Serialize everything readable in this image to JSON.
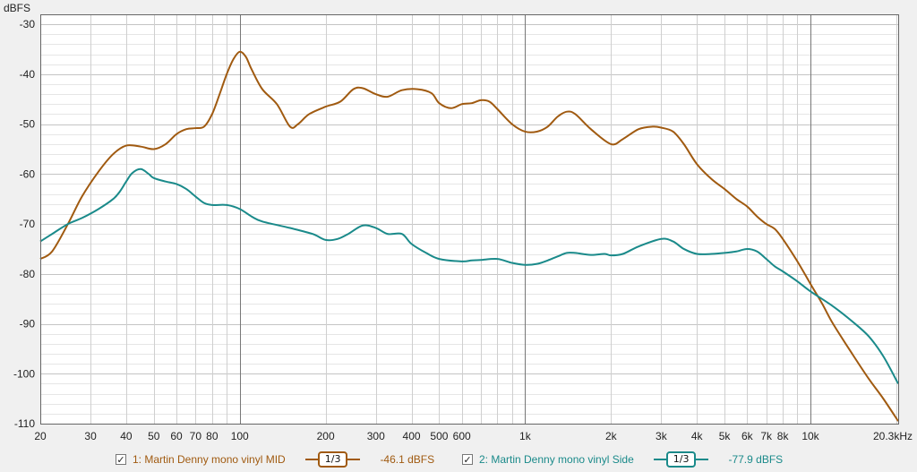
{
  "chart_data": {
    "type": "line",
    "ylabel": "dBFS",
    "xscale": "log",
    "xlim": [
      20,
      20300
    ],
    "ylim": [
      -110,
      -28
    ],
    "grid": true,
    "yticks": [
      -30,
      -40,
      -50,
      -60,
      -70,
      -80,
      -90,
      -100,
      -110
    ],
    "ytick_labels": [
      "-30",
      "-40",
      "-50",
      "-60",
      "-70",
      "-80",
      "-90",
      "-100",
      "-110"
    ],
    "xticks": [
      20,
      30,
      40,
      50,
      60,
      70,
      80,
      100,
      200,
      300,
      400,
      500,
      600,
      1000,
      2000,
      3000,
      4000,
      5000,
      6000,
      7000,
      8000,
      10000,
      20300
    ],
    "xtick_labels": [
      "20",
      "30",
      "40",
      "50",
      "60",
      "70",
      "80",
      "100",
      "200",
      "300",
      "400",
      "500",
      "600",
      "1k",
      "2k",
      "3k",
      "4k",
      "5k",
      "6k",
      "7k",
      "8k",
      "10k",
      "20.3kHz"
    ],
    "series": [
      {
        "name": "1: Martin Denny mono vinyl MID",
        "color": "#a05a10",
        "x": [
          20,
          22,
          25,
          28,
          32,
          36,
          40,
          45,
          50,
          55,
          60,
          65,
          70,
          75,
          80,
          85,
          90,
          95,
          100,
          105,
          110,
          120,
          135,
          150,
          160,
          175,
          200,
          225,
          250,
          270,
          300,
          330,
          370,
          420,
          470,
          500,
          550,
          600,
          650,
          700,
          750,
          800,
          900,
          1000,
          1100,
          1200,
          1300,
          1400,
          1500,
          1700,
          2000,
          2200,
          2500,
          2800,
          3000,
          3300,
          3600,
          4000,
          4500,
          5000,
          5500,
          6000,
          6500,
          7000,
          7500,
          8000,
          9000,
          10000,
          11000,
          12000,
          14000,
          16000,
          18000,
          20300
        ],
        "y": [
          -77,
          -75.5,
          -70,
          -64.5,
          -59.5,
          -56,
          -54.3,
          -54.5,
          -55,
          -54,
          -52,
          -51,
          -50.8,
          -50.5,
          -48,
          -44,
          -40,
          -37,
          -35.5,
          -36.5,
          -39,
          -43,
          -46,
          -50.5,
          -50,
          -48,
          -46.5,
          -45.5,
          -43,
          -42.8,
          -44,
          -44.5,
          -43.2,
          -43,
          -43.8,
          -45.8,
          -46.8,
          -46,
          -45.8,
          -45.2,
          -45.5,
          -47,
          -50,
          -51.5,
          -51.5,
          -50.5,
          -48.5,
          -47.5,
          -48,
          -51,
          -54,
          -53,
          -51,
          -50.5,
          -50.7,
          -51.5,
          -54,
          -58,
          -61,
          -63,
          -65,
          -66.5,
          -68.5,
          -70,
          -71,
          -73,
          -77.5,
          -82,
          -86,
          -90,
          -96,
          -101,
          -105,
          -109.5
        ]
      },
      {
        "name": "2: Martin Denny mono vinyl Side",
        "color": "#1a8a8a",
        "x": [
          20,
          22,
          25,
          28,
          32,
          36,
          38,
          40,
          42,
          45,
          48,
          50,
          55,
          60,
          65,
          70,
          75,
          80,
          90,
          100,
          110,
          120,
          150,
          180,
          200,
          220,
          240,
          270,
          300,
          330,
          370,
          400,
          450,
          500,
          600,
          650,
          700,
          800,
          900,
          1000,
          1100,
          1200,
          1300,
          1400,
          1500,
          1700,
          1900,
          2000,
          2200,
          2500,
          3000,
          3300,
          3600,
          4000,
          4500,
          5000,
          5500,
          6000,
          6500,
          7000,
          7500,
          8000,
          9000,
          10000,
          12000,
          14000,
          16000,
          18000,
          20300
        ],
        "y": [
          -73.5,
          -72,
          -70,
          -68.8,
          -67,
          -65,
          -63.5,
          -61.5,
          -59.8,
          -59,
          -60,
          -60.8,
          -61.5,
          -62,
          -63,
          -64.5,
          -65.8,
          -66.2,
          -66.2,
          -67,
          -68.5,
          -69.5,
          -70.8,
          -72,
          -73.2,
          -73,
          -72,
          -70.3,
          -70.8,
          -72,
          -72,
          -74,
          -75.8,
          -77,
          -77.5,
          -77.3,
          -77.2,
          -77,
          -77.8,
          -78.2,
          -78,
          -77.3,
          -76.5,
          -75.8,
          -75.8,
          -76.2,
          -76,
          -76.3,
          -76,
          -74.5,
          -73,
          -73.5,
          -75,
          -76,
          -76,
          -75.8,
          -75.5,
          -75,
          -75.5,
          -77,
          -78.5,
          -79.5,
          -81.5,
          -83.5,
          -86.5,
          -89.5,
          -92.5,
          -96.5,
          -102
        ]
      }
    ]
  },
  "legend": {
    "items": [
      {
        "checked": "✓",
        "label": "1: Martin Denny mono vinyl MID",
        "smoothing": "1/3",
        "value": "-46.1 dBFS",
        "color": "#a05a10"
      },
      {
        "checked": "✓",
        "label": "2: Martin Denny mono vinyl Side",
        "smoothing": "1/3",
        "value": "-77.9 dBFS",
        "color": "#1a8a8a"
      }
    ]
  }
}
